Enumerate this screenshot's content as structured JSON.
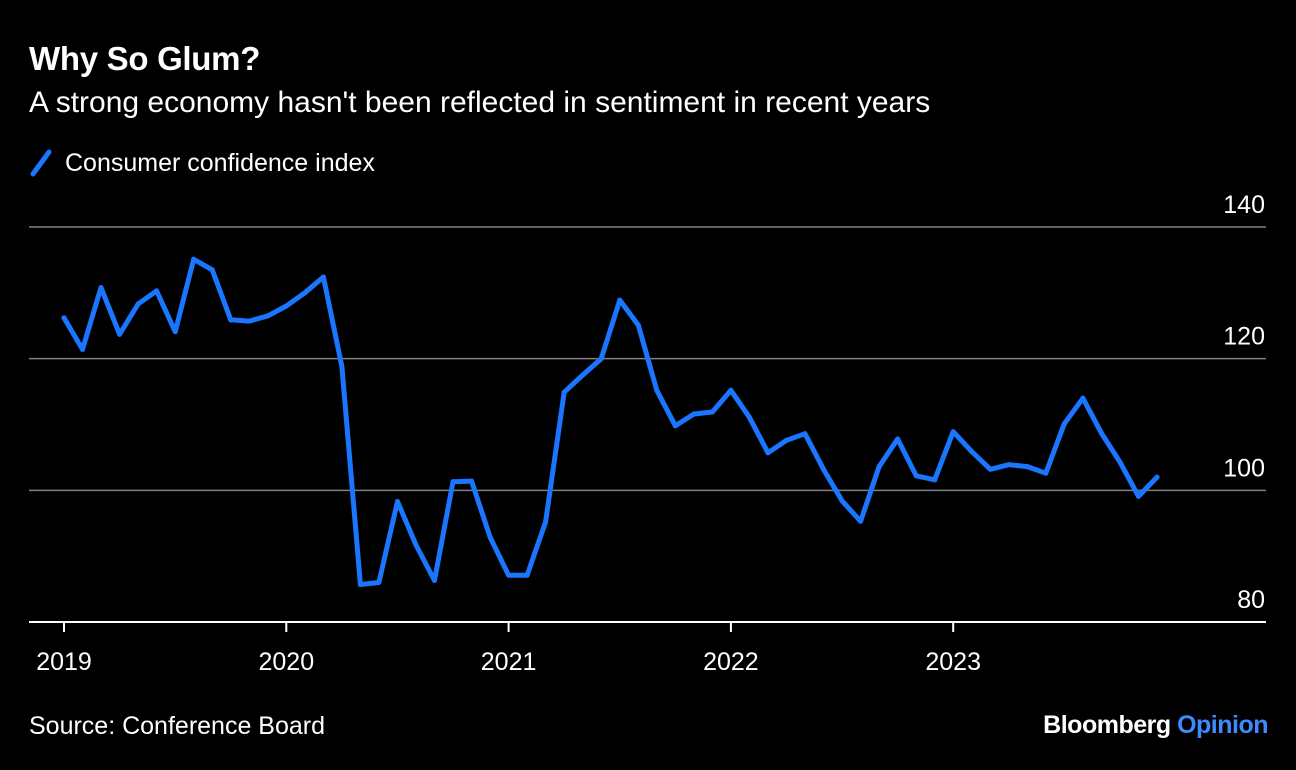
{
  "header": {
    "title": "Why So Glum?",
    "subtitle": "A strong economy hasn't been reflected in sentiment in recent years"
  },
  "footer": {
    "source": "Source: Conference Board",
    "brand_primary": "Bloomberg",
    "brand_secondary": "Opinion"
  },
  "colors": {
    "background": "#000000",
    "series": "#1a75ff",
    "grid": "#808080",
    "text": "#ffffff",
    "brand_accent": "#3d8bff"
  },
  "chart_data": {
    "type": "line",
    "title": "Why So Glum?",
    "subtitle": "A strong economy hasn't been reflected in sentiment in recent years",
    "xlabel": "",
    "ylabel": "",
    "ylim": [
      80,
      140
    ],
    "yticks": [
      80,
      100,
      120,
      140
    ],
    "xticks": [
      "2019",
      "2020",
      "2021",
      "2022",
      "2023"
    ],
    "grid": true,
    "legend": "top-left",
    "y_axis_position": "right",
    "series": [
      {
        "name": "Consumer confidence index",
        "color": "#1a75ff",
        "x": [
          "2019-01",
          "2019-02",
          "2019-03",
          "2019-04",
          "2019-05",
          "2019-06",
          "2019-07",
          "2019-08",
          "2019-09",
          "2019-10",
          "2019-11",
          "2019-12",
          "2020-01",
          "2020-02",
          "2020-03",
          "2020-04",
          "2020-05",
          "2020-06",
          "2020-07",
          "2020-08",
          "2020-09",
          "2020-10",
          "2020-11",
          "2020-12",
          "2021-01",
          "2021-02",
          "2021-03",
          "2021-04",
          "2021-05",
          "2021-06",
          "2021-07",
          "2021-08",
          "2021-09",
          "2021-10",
          "2021-11",
          "2021-12",
          "2022-01",
          "2022-02",
          "2022-03",
          "2022-04",
          "2022-05",
          "2022-06",
          "2022-07",
          "2022-08",
          "2022-09",
          "2022-10",
          "2022-11",
          "2022-12",
          "2023-01",
          "2023-02",
          "2023-03",
          "2023-04",
          "2023-05",
          "2023-06",
          "2023-07",
          "2023-08",
          "2023-09",
          "2023-10",
          "2023-11",
          "2023-12"
        ],
        "values": [
          126.2,
          121.4,
          130.8,
          123.7,
          128.3,
          130.3,
          124.1,
          135.1,
          133.5,
          125.9,
          125.7,
          126.5,
          128.0,
          130.0,
          132.4,
          118.8,
          85.7,
          86.0,
          98.3,
          91.7,
          86.3,
          101.3,
          101.4,
          92.9,
          87.1,
          87.1,
          95.2,
          114.9,
          117.5,
          120.0,
          128.9,
          125.1,
          115.2,
          109.8,
          111.6,
          111.9,
          115.2,
          111.1,
          105.7,
          107.6,
          108.6,
          103.2,
          98.4,
          95.3,
          103.6,
          107.8,
          102.2,
          101.6,
          108.9,
          105.9,
          103.2,
          103.9,
          103.6,
          102.6,
          110.1,
          114.0,
          108.7,
          104.3,
          99.1,
          102.0
        ]
      }
    ]
  }
}
